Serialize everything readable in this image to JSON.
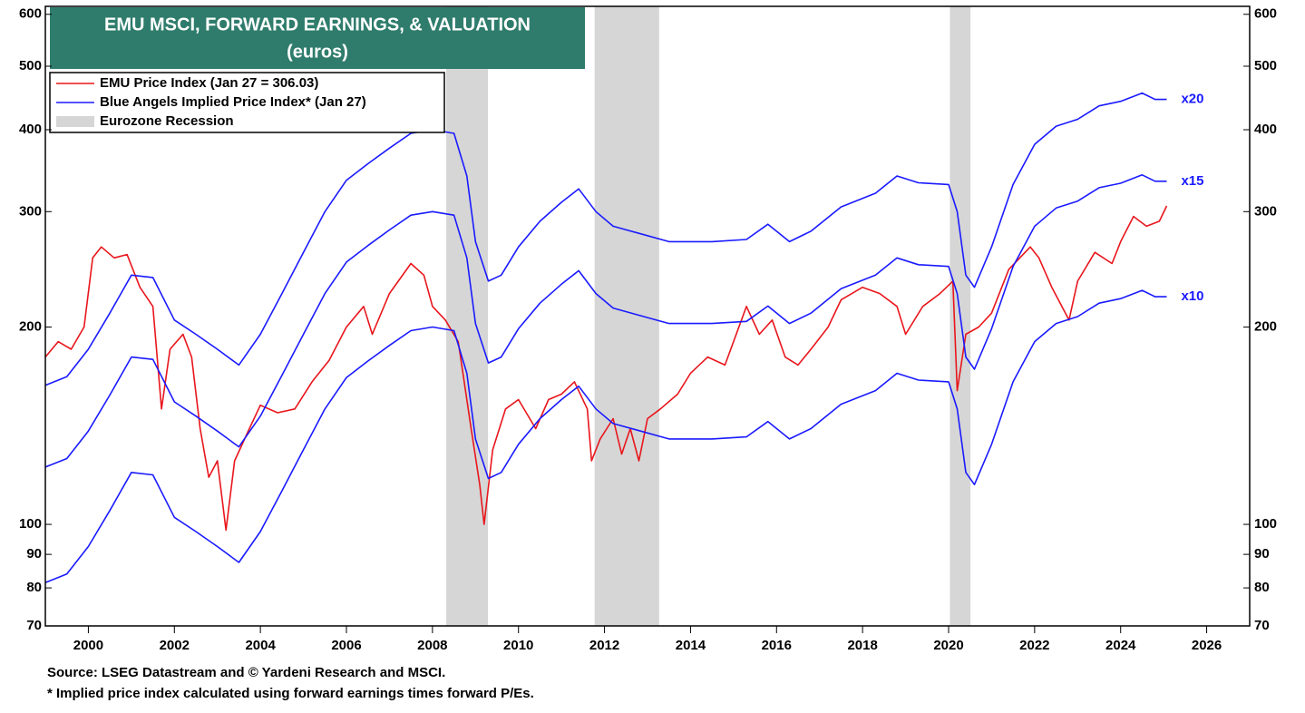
{
  "chart_data": {
    "type": "line",
    "title": "EMU MSCI, FORWARD EARNINGS, & VALUATION",
    "subtitle": "(euros)",
    "log_y": true,
    "xlim": [
      1999,
      2027
    ],
    "xticks": [
      2000,
      2002,
      2004,
      2006,
      2008,
      2010,
      2012,
      2014,
      2016,
      2018,
      2020,
      2022,
      2024,
      2026
    ],
    "ylim": [
      70,
      617
    ],
    "yticks": [
      70,
      80,
      90,
      100,
      200,
      300,
      400,
      500,
      600
    ],
    "legend": [
      {
        "label": "EMU Price Index (Jan 27 = 306.03)",
        "color": "#e8161c",
        "marker": "line"
      },
      {
        "label": "Blue Angels Implied Price Index* (Jan 27)",
        "color": "#1a1aff",
        "marker": "line"
      },
      {
        "label": "Eurozone Recession",
        "color": "#d6d6d6",
        "marker": "box"
      }
    ],
    "recessions": [
      {
        "start": 2008.32,
        "end": 2009.29
      },
      {
        "start": 2011.77,
        "end": 2013.27
      },
      {
        "start": 2020.03,
        "end": 2020.51
      }
    ],
    "series": [
      {
        "color": "#e8161c",
        "x": [
          1999.0,
          1999.3,
          1999.6,
          1999.9,
          2000.1,
          2000.3,
          2000.6,
          2000.9,
          2001.2,
          2001.5,
          2001.7,
          2001.9,
          2002.2,
          2002.4,
          2002.6,
          2002.8,
          2003.0,
          2003.2,
          2003.4,
          2003.7,
          2004.0,
          2004.4,
          2004.8,
          2005.2,
          2005.6,
          2006.0,
          2006.4,
          2006.6,
          2007.0,
          2007.5,
          2007.8,
          2008.0,
          2008.3,
          2008.6,
          2008.9,
          2009.1,
          2009.2,
          2009.4,
          2009.7,
          2010.0,
          2010.4,
          2010.7,
          2011.0,
          2011.3,
          2011.6,
          2011.7,
          2011.9,
          2012.2,
          2012.4,
          2012.6,
          2012.8,
          2013.0,
          2013.3,
          2013.7,
          2014.0,
          2014.4,
          2014.8,
          2015.3,
          2015.6,
          2015.9,
          2016.2,
          2016.5,
          2016.8,
          2017.2,
          2017.5,
          2018.0,
          2018.4,
          2018.8,
          2019.0,
          2019.4,
          2019.8,
          2020.1,
          2020.2,
          2020.4,
          2020.7,
          2021.0,
          2021.4,
          2021.9,
          2022.1,
          2022.4,
          2022.8,
          2023.0,
          2023.4,
          2023.8,
          2024.0,
          2024.3,
          2024.6,
          2024.9,
          2025.07
        ],
        "values": [
          180,
          190,
          185,
          200,
          255,
          265,
          255,
          258,
          230,
          215,
          150,
          185,
          195,
          180,
          140,
          118,
          125,
          98,
          125,
          138,
          152,
          148,
          150,
          165,
          178,
          200,
          215,
          195,
          225,
          250,
          240,
          215,
          205,
          190,
          140,
          115,
          100,
          130,
          150,
          155,
          140,
          155,
          158,
          165,
          150,
          125,
          135,
          145,
          128,
          140,
          125,
          145,
          150,
          158,
          170,
          180,
          175,
          215,
          195,
          205,
          180,
          175,
          185,
          200,
          220,
          230,
          225,
          215,
          195,
          215,
          225,
          235,
          160,
          195,
          200,
          210,
          245,
          265,
          255,
          230,
          205,
          235,
          260,
          250,
          270,
          295,
          285,
          290,
          306.03
        ]
      },
      {
        "name": "x20",
        "color": "#1a1aff",
        "x": [
          1999.0,
          1999.5,
          2000.0,
          2000.5,
          2001.0,
          2001.5,
          2002.0,
          2002.5,
          2003.0,
          2003.5,
          2004.0,
          2004.5,
          2005.0,
          2005.5,
          2006.0,
          2006.5,
          2007.0,
          2007.5,
          2008.0,
          2008.5,
          2008.8,
          2009.0,
          2009.3,
          2009.6,
          2010.0,
          2010.5,
          2011.0,
          2011.4,
          2011.8,
          2012.2,
          2012.8,
          2013.5,
          2014.5,
          2015.3,
          2015.8,
          2016.3,
          2016.8,
          2017.5,
          2018.3,
          2018.8,
          2019.3,
          2020.0,
          2020.2,
          2020.4,
          2020.6,
          2021.0,
          2021.5,
          2022.0,
          2022.5,
          2023.0,
          2023.5,
          2024.0,
          2024.5,
          2024.8,
          2025.07
        ],
        "values": [
          163,
          168,
          185,
          210,
          240,
          238,
          205,
          195,
          185,
          175,
          195,
          225,
          260,
          300,
          335,
          355,
          375,
          395,
          400,
          395,
          340,
          270,
          235,
          240,
          265,
          290,
          310,
          325,
          300,
          285,
          278,
          270,
          270,
          272,
          287,
          270,
          280,
          305,
          320,
          340,
          332,
          330,
          300,
          240,
          230,
          265,
          330,
          380,
          405,
          415,
          435,
          442,
          455,
          445,
          445
        ]
      },
      {
        "name": "x15",
        "color": "#1a1aff",
        "x": [
          1999.0,
          1999.5,
          2000.0,
          2000.5,
          2001.0,
          2001.5,
          2002.0,
          2002.5,
          2003.0,
          2003.5,
          2004.0,
          2004.5,
          2005.0,
          2005.5,
          2006.0,
          2006.5,
          2007.0,
          2007.5,
          2008.0,
          2008.5,
          2008.8,
          2009.0,
          2009.3,
          2009.6,
          2010.0,
          2010.5,
          2011.0,
          2011.4,
          2011.8,
          2012.2,
          2012.8,
          2013.5,
          2014.5,
          2015.3,
          2015.8,
          2016.3,
          2016.8,
          2017.5,
          2018.3,
          2018.8,
          2019.3,
          2020.0,
          2020.2,
          2020.4,
          2020.6,
          2021.0,
          2021.5,
          2022.0,
          2022.5,
          2023.0,
          2023.5,
          2024.0,
          2024.5,
          2024.8,
          2025.07
        ],
        "values": [
          122.3,
          126,
          138.8,
          157.5,
          180,
          178.5,
          153.8,
          146.3,
          138.8,
          131.3,
          146.3,
          168.8,
          195,
          225,
          251.3,
          266.3,
          281.3,
          296.3,
          300,
          296.3,
          255,
          202.5,
          176.3,
          180,
          198.8,
          217.5,
          232.5,
          243.8,
          225,
          213.8,
          208.5,
          202.5,
          202.5,
          204,
          215.3,
          202.5,
          210,
          228.8,
          240,
          255,
          249,
          247.5,
          225,
          180,
          172.5,
          198.8,
          247.5,
          285,
          303.8,
          311.3,
          326.3,
          331.5,
          341.3,
          333.8,
          333.8
        ]
      },
      {
        "name": "x10",
        "color": "#1a1aff",
        "x": [
          1999.0,
          1999.5,
          2000.0,
          2000.5,
          2001.0,
          2001.5,
          2002.0,
          2002.5,
          2003.0,
          2003.5,
          2004.0,
          2004.5,
          2005.0,
          2005.5,
          2006.0,
          2006.5,
          2007.0,
          2007.5,
          2008.0,
          2008.5,
          2008.8,
          2009.0,
          2009.3,
          2009.6,
          2010.0,
          2010.5,
          2011.0,
          2011.4,
          2011.8,
          2012.2,
          2012.8,
          2013.5,
          2014.5,
          2015.3,
          2015.8,
          2016.3,
          2016.8,
          2017.5,
          2018.3,
          2018.8,
          2019.3,
          2020.0,
          2020.2,
          2020.4,
          2020.6,
          2021.0,
          2021.5,
          2022.0,
          2022.5,
          2023.0,
          2023.5,
          2024.0,
          2024.5,
          2024.8,
          2025.07
        ],
        "values": [
          81.5,
          84,
          92.5,
          105,
          120,
          119,
          102.5,
          97.5,
          92.5,
          87.5,
          97.5,
          112.5,
          130,
          150,
          167.5,
          177.5,
          187.5,
          197.5,
          200,
          197.5,
          170,
          135,
          117.5,
          120,
          132.5,
          145,
          155,
          162.5,
          150,
          142.5,
          139,
          135,
          135,
          136,
          143.5,
          135,
          140,
          152.5,
          160,
          170,
          166,
          165,
          150,
          120,
          115,
          132.5,
          165,
          190,
          202.5,
          207.5,
          217.5,
          221,
          227.5,
          222.5,
          222.5
        ]
      }
    ],
    "footnotes": [
      "Source: LSEG Datastream and © Yardeni Research and MSCI.",
      "* Implied price index calculated using forward earnings times forward P/Es."
    ]
  }
}
